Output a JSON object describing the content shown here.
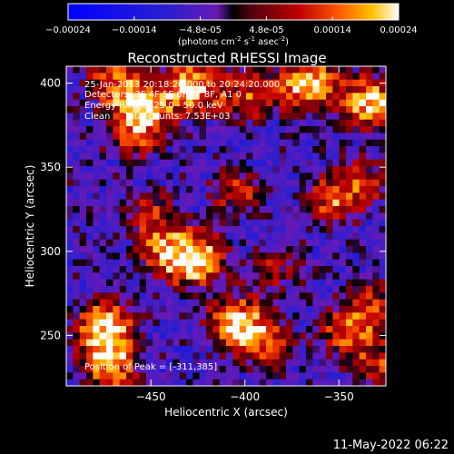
{
  "chart_data": {
    "type": "heatmap",
    "title": "Reconstructed RHESSI Image",
    "xlabel": "Heliocentric X (arcsec)",
    "ylabel": "Heliocentric Y (arcsec)",
    "xlim": [
      -495,
      -325
    ],
    "ylim": [
      220,
      410
    ],
    "x_ticks": [
      -450,
      -400,
      -350
    ],
    "y_ticks": [
      250,
      300,
      350,
      400
    ],
    "colorbar": {
      "label": "(photons cm",
      "label_sup1": "-2",
      "label_mid1": " s",
      "label_sup2": "-1",
      "label_mid2": " asec",
      "label_sup3": "-2",
      "label_end": ")",
      "range": [
        -0.00024,
        0.00024
      ],
      "ticks": [
        "-0.00024",
        "-0.00014",
        "-4.8e-05",
        "4.8e-05",
        "0.00014",
        "0.00024"
      ]
    },
    "annotations": [
      "25-Jan-2013 20:18:20.000 to 20:24:20.000",
      "Detectors: 3F 4F 5F 6F 7F 8F, A1 0",
      "Energy Range: 25.0 - 50.0 keV",
      "Clean     Total counts: 7.53E+03"
    ],
    "peak_label": "Position of Peak = [-311,385]",
    "peak": [
      -311,
      385
    ],
    "hotspots": [
      {
        "x": -455,
        "y": 385,
        "v": 1.0
      },
      {
        "x": -428,
        "y": 398,
        "v": 0.9
      },
      {
        "x": -366,
        "y": 399,
        "v": 1.0
      },
      {
        "x": -333,
        "y": 388,
        "v": 0.95
      },
      {
        "x": -398,
        "y": 392,
        "v": 0.6
      },
      {
        "x": -470,
        "y": 403,
        "v": 0.55
      },
      {
        "x": -426,
        "y": 295,
        "v": 0.95
      },
      {
        "x": -404,
        "y": 335,
        "v": 0.5
      },
      {
        "x": -354,
        "y": 330,
        "v": 0.6
      },
      {
        "x": -338,
        "y": 342,
        "v": 0.5
      },
      {
        "x": -442,
        "y": 300,
        "v": 0.6
      },
      {
        "x": -474,
        "y": 255,
        "v": 1.0
      },
      {
        "x": -472,
        "y": 232,
        "v": 0.8
      },
      {
        "x": -405,
        "y": 258,
        "v": 0.85
      },
      {
        "x": -390,
        "y": 246,
        "v": 0.6
      },
      {
        "x": -346,
        "y": 252,
        "v": 0.6
      },
      {
        "x": -332,
        "y": 268,
        "v": 0.5
      },
      {
        "x": -460,
        "y": 365,
        "v": 0.4
      },
      {
        "x": -450,
        "y": 322,
        "v": 0.45
      },
      {
        "x": -384,
        "y": 290,
        "v": 0.4
      },
      {
        "x": -328,
        "y": 232,
        "v": 0.5
      }
    ]
  },
  "footer": {
    "timestamp": "11-May-2022 06:22"
  }
}
